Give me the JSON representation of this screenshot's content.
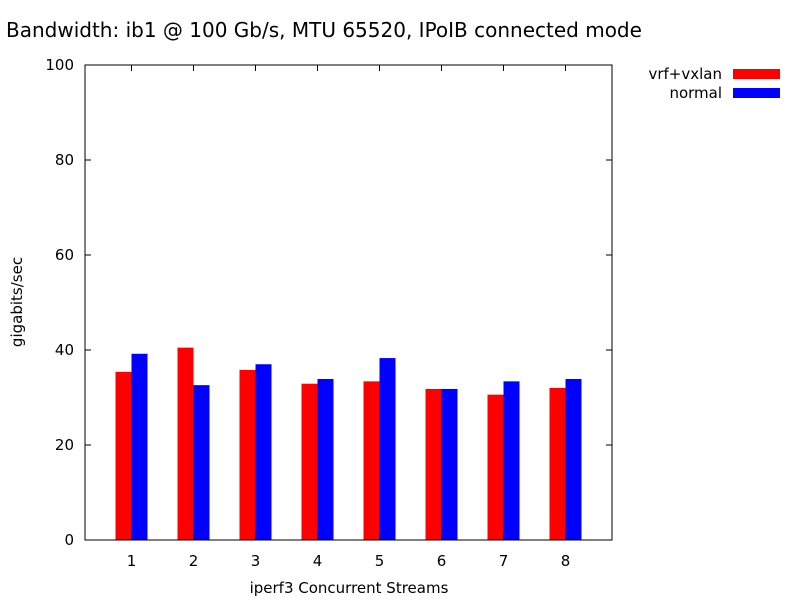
{
  "chart_data": {
    "type": "bar",
    "title": "Bandwidth: ib1 @ 100 Gb/s, MTU 65520, IPoIB connected mode",
    "xlabel": "iperf3 Concurrent Streams",
    "ylabel": "gigabits/sec",
    "ylim": [
      0,
      100
    ],
    "yticks": [
      0,
      20,
      40,
      60,
      80,
      100
    ],
    "categories": [
      "1",
      "2",
      "3",
      "4",
      "5",
      "6",
      "7",
      "8"
    ],
    "series": [
      {
        "name": "vrf+vxlan",
        "color": "#ff0000",
        "values": [
          35.4,
          40.5,
          35.8,
          32.9,
          33.4,
          31.8,
          30.6,
          32.0
        ]
      },
      {
        "name": "normal",
        "color": "#0000ff",
        "values": [
          39.2,
          32.6,
          37.0,
          33.9,
          38.3,
          31.8,
          33.4,
          33.9
        ]
      }
    ],
    "legend": "top-right, outside plot",
    "grid": false
  }
}
